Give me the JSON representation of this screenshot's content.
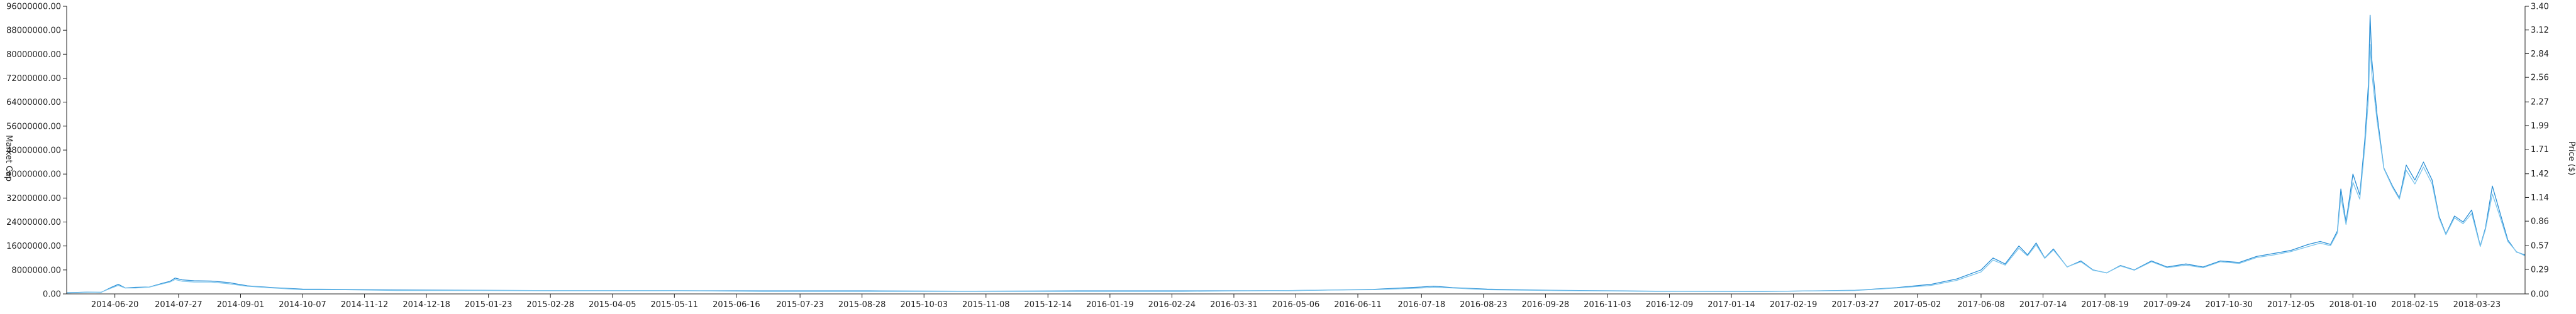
{
  "chart_data": {
    "type": "line",
    "y_left": {
      "label": "Market Cap",
      "ylim": [
        0,
        96000000
      ],
      "ticks": [
        "0.00",
        "8000000.00",
        "16000000.00",
        "24000000.00",
        "32000000.00",
        "40000000.00",
        "48000000.00",
        "56000000.00",
        "64000000.00",
        "72000000.00",
        "80000000.00",
        "88000000.00",
        "96000000.00"
      ],
      "tick_values": [
        0,
        8000000,
        16000000,
        24000000,
        32000000,
        40000000,
        48000000,
        56000000,
        64000000,
        72000000,
        80000000,
        88000000,
        96000000
      ]
    },
    "y_right": {
      "label": "Price ($)",
      "ylim": [
        0,
        3.4
      ],
      "ticks": [
        "0.00",
        "0.29",
        "0.57",
        "0.86",
        "1.14",
        "1.42",
        "1.71",
        "1.99",
        "2.27",
        "2.56",
        "2.84",
        "3.12",
        "3.40"
      ],
      "tick_values": [
        0,
        0.29,
        0.57,
        0.86,
        1.14,
        1.42,
        1.71,
        1.99,
        2.27,
        2.56,
        2.84,
        3.12,
        3.4
      ]
    },
    "x_axis": {
      "range": [
        "2014-05-23",
        "2018-04-20"
      ],
      "ticks": [
        "2014-06-20",
        "2014-07-27",
        "2014-09-01",
        "2014-10-07",
        "2014-11-12",
        "2014-12-18",
        "2015-01-23",
        "2015-02-28",
        "2015-04-05",
        "2015-05-11",
        "2015-06-16",
        "2015-07-23",
        "2015-08-28",
        "2015-10-03",
        "2015-11-08",
        "2015-12-14",
        "2016-01-19",
        "2016-02-24",
        "2016-03-31",
        "2016-05-06",
        "2016-06-11",
        "2016-07-18",
        "2016-08-23",
        "2016-09-28",
        "2016-11-03",
        "2016-12-09",
        "2017-01-14",
        "2017-02-19",
        "2017-03-27",
        "2017-05-02",
        "2017-06-08",
        "2017-07-14",
        "2017-08-19",
        "2017-09-24",
        "2017-10-30",
        "2017-12-05",
        "2018-01-10",
        "2018-02-15",
        "2018-03-23"
      ]
    },
    "grid": false,
    "colors": {
      "market_cap": "#2a8fd6",
      "price": "#7cc4ec",
      "axis": "#222222"
    },
    "series": [
      {
        "axis": "left",
        "points": [
          [
            "2014-05-23",
            400000
          ],
          [
            "2014-06-05",
            600000
          ],
          [
            "2014-06-12",
            500000
          ],
          [
            "2014-06-18",
            2200000
          ],
          [
            "2014-06-22",
            3200000
          ],
          [
            "2014-06-26",
            2000000
          ],
          [
            "2014-07-02",
            2200000
          ],
          [
            "2014-07-10",
            2300000
          ],
          [
            "2014-07-18",
            3600000
          ],
          [
            "2014-07-22",
            4200000
          ],
          [
            "2014-07-25",
            5300000
          ],
          [
            "2014-07-29",
            4700000
          ],
          [
            "2014-08-05",
            4400000
          ],
          [
            "2014-08-15",
            4300000
          ],
          [
            "2014-08-25",
            3800000
          ],
          [
            "2014-09-05",
            2700000
          ],
          [
            "2014-09-20",
            2100000
          ],
          [
            "2014-10-07",
            1600000
          ],
          [
            "2014-11-01",
            1500000
          ],
          [
            "2014-12-01",
            1300000
          ],
          [
            "2015-01-15",
            1200000
          ],
          [
            "2015-03-01",
            1100000
          ],
          [
            "2015-05-01",
            1100000
          ],
          [
            "2015-07-01",
            1000000
          ],
          [
            "2015-09-01",
            1000000
          ],
          [
            "2015-11-01",
            900000
          ],
          [
            "2016-01-01",
            1000000
          ],
          [
            "2016-03-01",
            1000000
          ],
          [
            "2016-05-01",
            1100000
          ],
          [
            "2016-06-20",
            1500000
          ],
          [
            "2016-07-18",
            2300000
          ],
          [
            "2016-07-25",
            2600000
          ],
          [
            "2016-08-05",
            2100000
          ],
          [
            "2016-08-25",
            1600000
          ],
          [
            "2016-10-01",
            1200000
          ],
          [
            "2016-12-01",
            900000
          ],
          [
            "2017-02-01",
            800000
          ],
          [
            "2017-03-27",
            1200000
          ],
          [
            "2017-04-20",
            2100000
          ],
          [
            "2017-05-10",
            3200000
          ],
          [
            "2017-05-25",
            5000000
          ],
          [
            "2017-06-08",
            8000000
          ],
          [
            "2017-06-15",
            12000000
          ],
          [
            "2017-06-22",
            10000000
          ],
          [
            "2017-06-30",
            16000000
          ],
          [
            "2017-07-05",
            13000000
          ],
          [
            "2017-07-10",
            17000000
          ],
          [
            "2017-07-15",
            12000000
          ],
          [
            "2017-07-20",
            15000000
          ],
          [
            "2017-07-28",
            9000000
          ],
          [
            "2017-08-05",
            11000000
          ],
          [
            "2017-08-12",
            8000000
          ],
          [
            "2017-08-20",
            7000000
          ],
          [
            "2017-08-28",
            9500000
          ],
          [
            "2017-09-05",
            8000000
          ],
          [
            "2017-09-15",
            11000000
          ],
          [
            "2017-09-24",
            9000000
          ],
          [
            "2017-10-05",
            10000000
          ],
          [
            "2017-10-15",
            9000000
          ],
          [
            "2017-10-25",
            11000000
          ],
          [
            "2017-11-05",
            10500000
          ],
          [
            "2017-11-15",
            12500000
          ],
          [
            "2017-11-25",
            13500000
          ],
          [
            "2017-12-05",
            14500000
          ],
          [
            "2017-12-15",
            16500000
          ],
          [
            "2017-12-22",
            17500000
          ],
          [
            "2017-12-28",
            16500000
          ],
          [
            "2018-01-01",
            21000000
          ],
          [
            "2018-01-03",
            35000000
          ],
          [
            "2018-01-06",
            24000000
          ],
          [
            "2018-01-10",
            40000000
          ],
          [
            "2018-01-14",
            33000000
          ],
          [
            "2018-01-17",
            52000000
          ],
          [
            "2018-01-19",
            70000000
          ],
          [
            "2018-01-20",
            93000000
          ],
          [
            "2018-01-21",
            78000000
          ],
          [
            "2018-01-24",
            60000000
          ],
          [
            "2018-01-28",
            42000000
          ],
          [
            "2018-02-02",
            36000000
          ],
          [
            "2018-02-06",
            32000000
          ],
          [
            "2018-02-10",
            43000000
          ],
          [
            "2018-02-15",
            38000000
          ],
          [
            "2018-02-20",
            44000000
          ],
          [
            "2018-02-25",
            38000000
          ],
          [
            "2018-03-01",
            26000000
          ],
          [
            "2018-03-05",
            20000000
          ],
          [
            "2018-03-10",
            26000000
          ],
          [
            "2018-03-15",
            24000000
          ],
          [
            "2018-03-20",
            28000000
          ],
          [
            "2018-03-25",
            16000000
          ],
          [
            "2018-03-28",
            22000000
          ],
          [
            "2018-04-01",
            36000000
          ],
          [
            "2018-04-05",
            28000000
          ],
          [
            "2018-04-10",
            18000000
          ],
          [
            "2018-04-15",
            14000000
          ],
          [
            "2018-04-20",
            13000000
          ]
        ]
      },
      {
        "axis": "right",
        "points": [
          [
            "2014-05-23",
            0.01
          ],
          [
            "2014-06-05",
            0.02
          ],
          [
            "2014-06-12",
            0.02
          ],
          [
            "2014-06-18",
            0.07
          ],
          [
            "2014-06-22",
            0.1
          ],
          [
            "2014-06-26",
            0.07
          ],
          [
            "2014-07-02",
            0.07
          ],
          [
            "2014-07-10",
            0.08
          ],
          [
            "2014-07-18",
            0.12
          ],
          [
            "2014-07-22",
            0.14
          ],
          [
            "2014-07-25",
            0.17
          ],
          [
            "2014-07-29",
            0.15
          ],
          [
            "2014-08-05",
            0.14
          ],
          [
            "2014-08-15",
            0.14
          ],
          [
            "2014-08-25",
            0.12
          ],
          [
            "2014-09-05",
            0.09
          ],
          [
            "2014-09-20",
            0.07
          ],
          [
            "2014-10-07",
            0.05
          ],
          [
            "2014-11-01",
            0.05
          ],
          [
            "2014-12-01",
            0.04
          ],
          [
            "2015-01-15",
            0.04
          ],
          [
            "2015-03-01",
            0.04
          ],
          [
            "2015-05-01",
            0.04
          ],
          [
            "2015-07-01",
            0.03
          ],
          [
            "2015-09-01",
            0.03
          ],
          [
            "2015-11-01",
            0.03
          ],
          [
            "2016-01-01",
            0.03
          ],
          [
            "2016-03-01",
            0.03
          ],
          [
            "2016-05-01",
            0.04
          ],
          [
            "2016-06-20",
            0.05
          ],
          [
            "2016-07-18",
            0.07
          ],
          [
            "2016-07-25",
            0.08
          ],
          [
            "2016-08-05",
            0.07
          ],
          [
            "2016-08-25",
            0.05
          ],
          [
            "2016-10-01",
            0.04
          ],
          [
            "2016-12-01",
            0.03
          ],
          [
            "2017-02-01",
            0.03
          ],
          [
            "2017-03-27",
            0.04
          ],
          [
            "2017-04-20",
            0.07
          ],
          [
            "2017-05-10",
            0.1
          ],
          [
            "2017-05-25",
            0.16
          ],
          [
            "2017-06-08",
            0.26
          ],
          [
            "2017-06-15",
            0.4
          ],
          [
            "2017-06-22",
            0.34
          ],
          [
            "2017-06-30",
            0.54
          ],
          [
            "2017-07-05",
            0.45
          ],
          [
            "2017-07-10",
            0.58
          ],
          [
            "2017-07-15",
            0.42
          ],
          [
            "2017-07-20",
            0.52
          ],
          [
            "2017-07-28",
            0.32
          ],
          [
            "2017-08-05",
            0.38
          ],
          [
            "2017-08-12",
            0.28
          ],
          [
            "2017-08-20",
            0.25
          ],
          [
            "2017-08-28",
            0.33
          ],
          [
            "2017-09-05",
            0.28
          ],
          [
            "2017-09-15",
            0.38
          ],
          [
            "2017-09-24",
            0.31
          ],
          [
            "2017-10-05",
            0.34
          ],
          [
            "2017-10-15",
            0.31
          ],
          [
            "2017-10-25",
            0.38
          ],
          [
            "2017-11-05",
            0.36
          ],
          [
            "2017-11-15",
            0.43
          ],
          [
            "2017-11-25",
            0.46
          ],
          [
            "2017-12-05",
            0.5
          ],
          [
            "2017-12-15",
            0.56
          ],
          [
            "2017-12-22",
            0.6
          ],
          [
            "2017-12-28",
            0.57
          ],
          [
            "2018-01-01",
            0.72
          ],
          [
            "2018-01-03",
            1.15
          ],
          [
            "2018-01-06",
            0.82
          ],
          [
            "2018-01-10",
            1.32
          ],
          [
            "2018-01-14",
            1.12
          ],
          [
            "2018-01-17",
            1.75
          ],
          [
            "2018-01-19",
            2.3
          ],
          [
            "2018-01-20",
            2.95
          ],
          [
            "2018-01-21",
            2.6
          ],
          [
            "2018-01-24",
            2.05
          ],
          [
            "2018-01-28",
            1.48
          ],
          [
            "2018-02-02",
            1.26
          ],
          [
            "2018-02-06",
            1.12
          ],
          [
            "2018-02-10",
            1.46
          ],
          [
            "2018-02-15",
            1.3
          ],
          [
            "2018-02-20",
            1.5
          ],
          [
            "2018-02-25",
            1.3
          ],
          [
            "2018-03-01",
            0.9
          ],
          [
            "2018-03-05",
            0.7
          ],
          [
            "2018-03-10",
            0.9
          ],
          [
            "2018-03-15",
            0.83
          ],
          [
            "2018-03-20",
            0.95
          ],
          [
            "2018-03-25",
            0.56
          ],
          [
            "2018-03-28",
            0.76
          ],
          [
            "2018-04-01",
            1.18
          ],
          [
            "2018-04-05",
            0.94
          ],
          [
            "2018-04-10",
            0.62
          ],
          [
            "2018-04-15",
            0.5
          ],
          [
            "2018-04-20",
            0.45
          ]
        ]
      }
    ]
  }
}
